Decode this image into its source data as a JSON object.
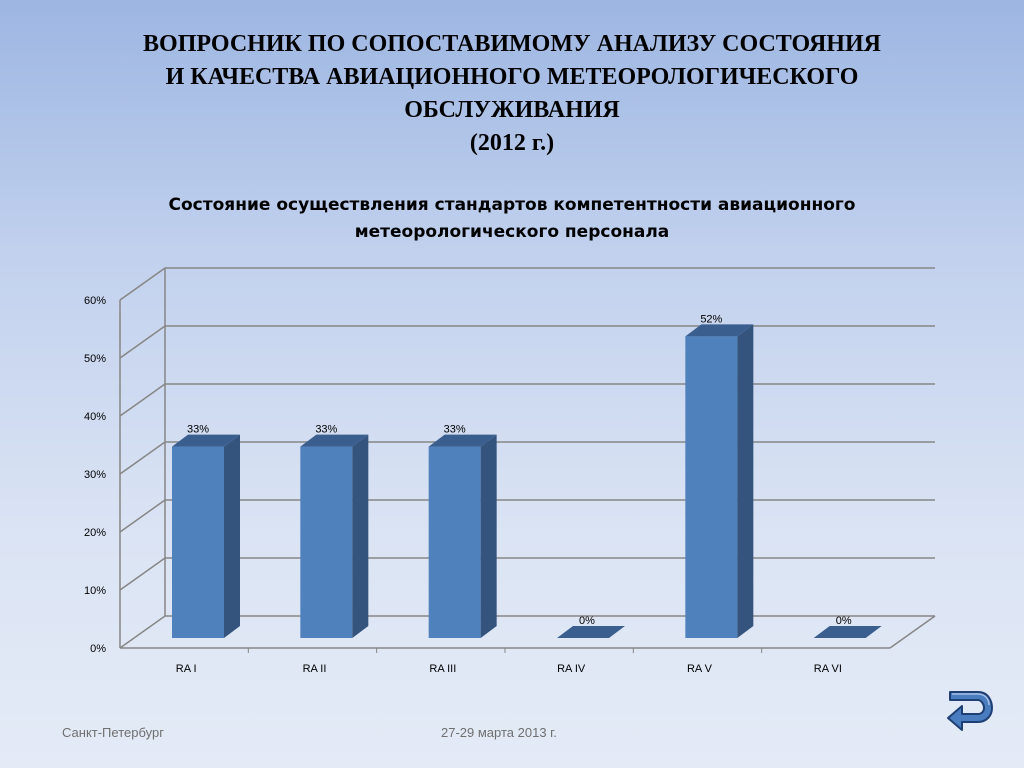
{
  "slide": {
    "title_lines": [
      "ВОПРОСНИК ПО СОПОСТАВИМОМУ АНАЛИЗУ СОСТОЯНИЯ",
      "И КАЧЕСТВА АВИАЦИОННОГО МЕТЕОРОЛОГИЧЕСКОГО",
      "ОБСЛУЖИВАНИЯ",
      "(2012 г.)"
    ],
    "footer_left": "Санкт-Петербург",
    "footer_center": "27-29  марта 2013 г."
  },
  "colors": {
    "bar_front": "#4f81bd",
    "bar_side": "#34547e",
    "bar_top": "#3a5f8f",
    "gridline": "#868686"
  },
  "icons": {
    "back": "back-arrow-icon"
  },
  "chart_data": {
    "type": "bar",
    "title_lines": [
      "Состояние осуществления стандартов компетентности авиационного",
      "метеорологического персонала"
    ],
    "categories": [
      "RA I",
      "RA II",
      "RA III",
      "RA IV",
      "RA V",
      "RA VI"
    ],
    "values": [
      33,
      33,
      33,
      0,
      52,
      0
    ],
    "data_labels": [
      "33%",
      "33%",
      "33%",
      "0%",
      "52%",
      "0%"
    ],
    "y_ticks": [
      "0%",
      "10%",
      "20%",
      "30%",
      "40%",
      "50%",
      "60%"
    ],
    "ylim": [
      0,
      60
    ],
    "grid": true,
    "legend": "none",
    "style": "3d-column"
  }
}
